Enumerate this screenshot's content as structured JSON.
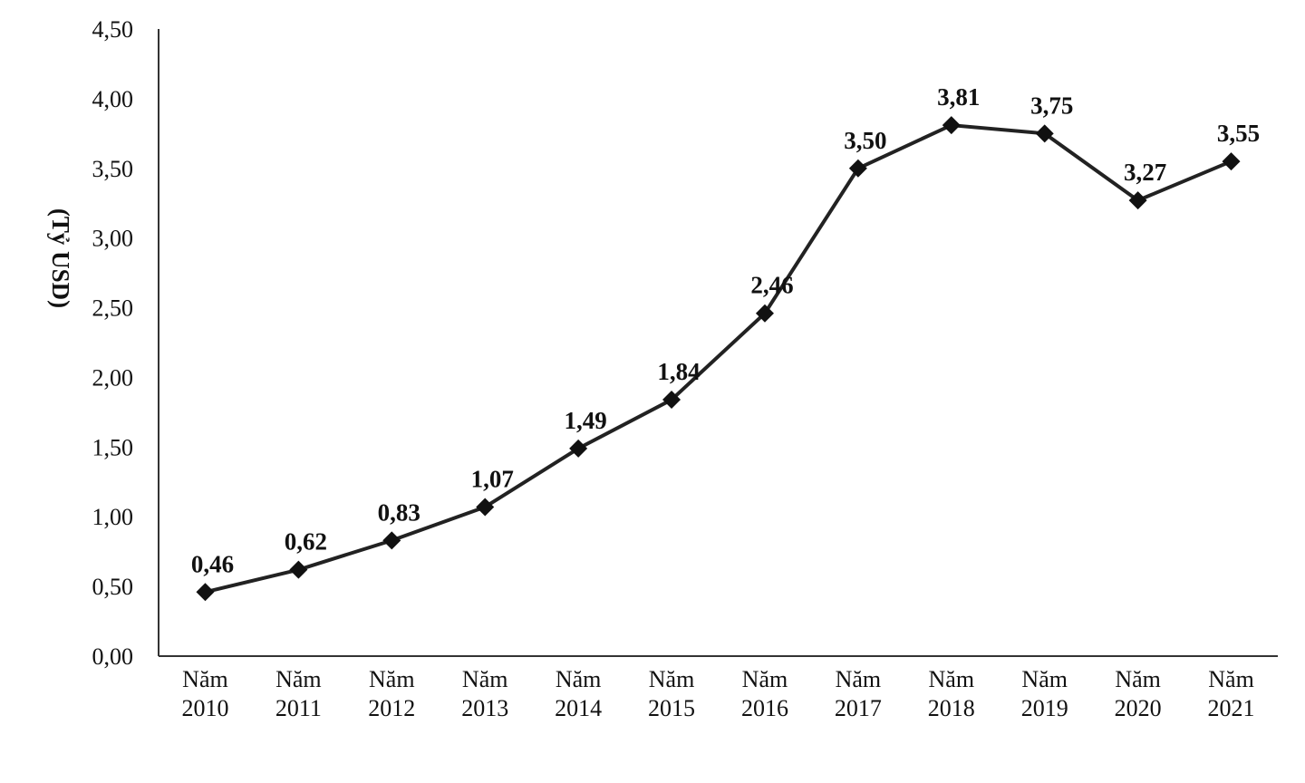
{
  "chart_data": {
    "type": "line",
    "ylabel": "(Tỷ USD)",
    "xlabel": "",
    "ylim": [
      0,
      4.5
    ],
    "y_ticks": [
      "0,00",
      "0,50",
      "1,00",
      "1,50",
      "2,00",
      "2,50",
      "3,00",
      "3,50",
      "4,00",
      "4,50"
    ],
    "grid": false,
    "categories": [
      [
        "Năm",
        "2010"
      ],
      [
        "Năm",
        "2011"
      ],
      [
        "Năm",
        "2012"
      ],
      [
        "Năm",
        "2013"
      ],
      [
        "Năm",
        "2014"
      ],
      [
        "Năm",
        "2015"
      ],
      [
        "Năm",
        "2016"
      ],
      [
        "Năm",
        "2017"
      ],
      [
        "Năm",
        "2018"
      ],
      [
        "Năm",
        "2019"
      ],
      [
        "Năm",
        "2020"
      ],
      [
        "Năm",
        "2021"
      ]
    ],
    "series": [
      {
        "values": [
          0.46,
          0.62,
          0.83,
          1.07,
          1.49,
          1.84,
          2.46,
          3.5,
          3.81,
          3.75,
          3.27,
          3.55
        ],
        "labels": [
          "0,46",
          "0,62",
          "0,83",
          "1,07",
          "1,49",
          "1,84",
          "2,46",
          "3,50",
          "3,81",
          "3,75",
          "3,27",
          "3,55"
        ],
        "color": "#111111",
        "marker": "diamond"
      }
    ]
  }
}
